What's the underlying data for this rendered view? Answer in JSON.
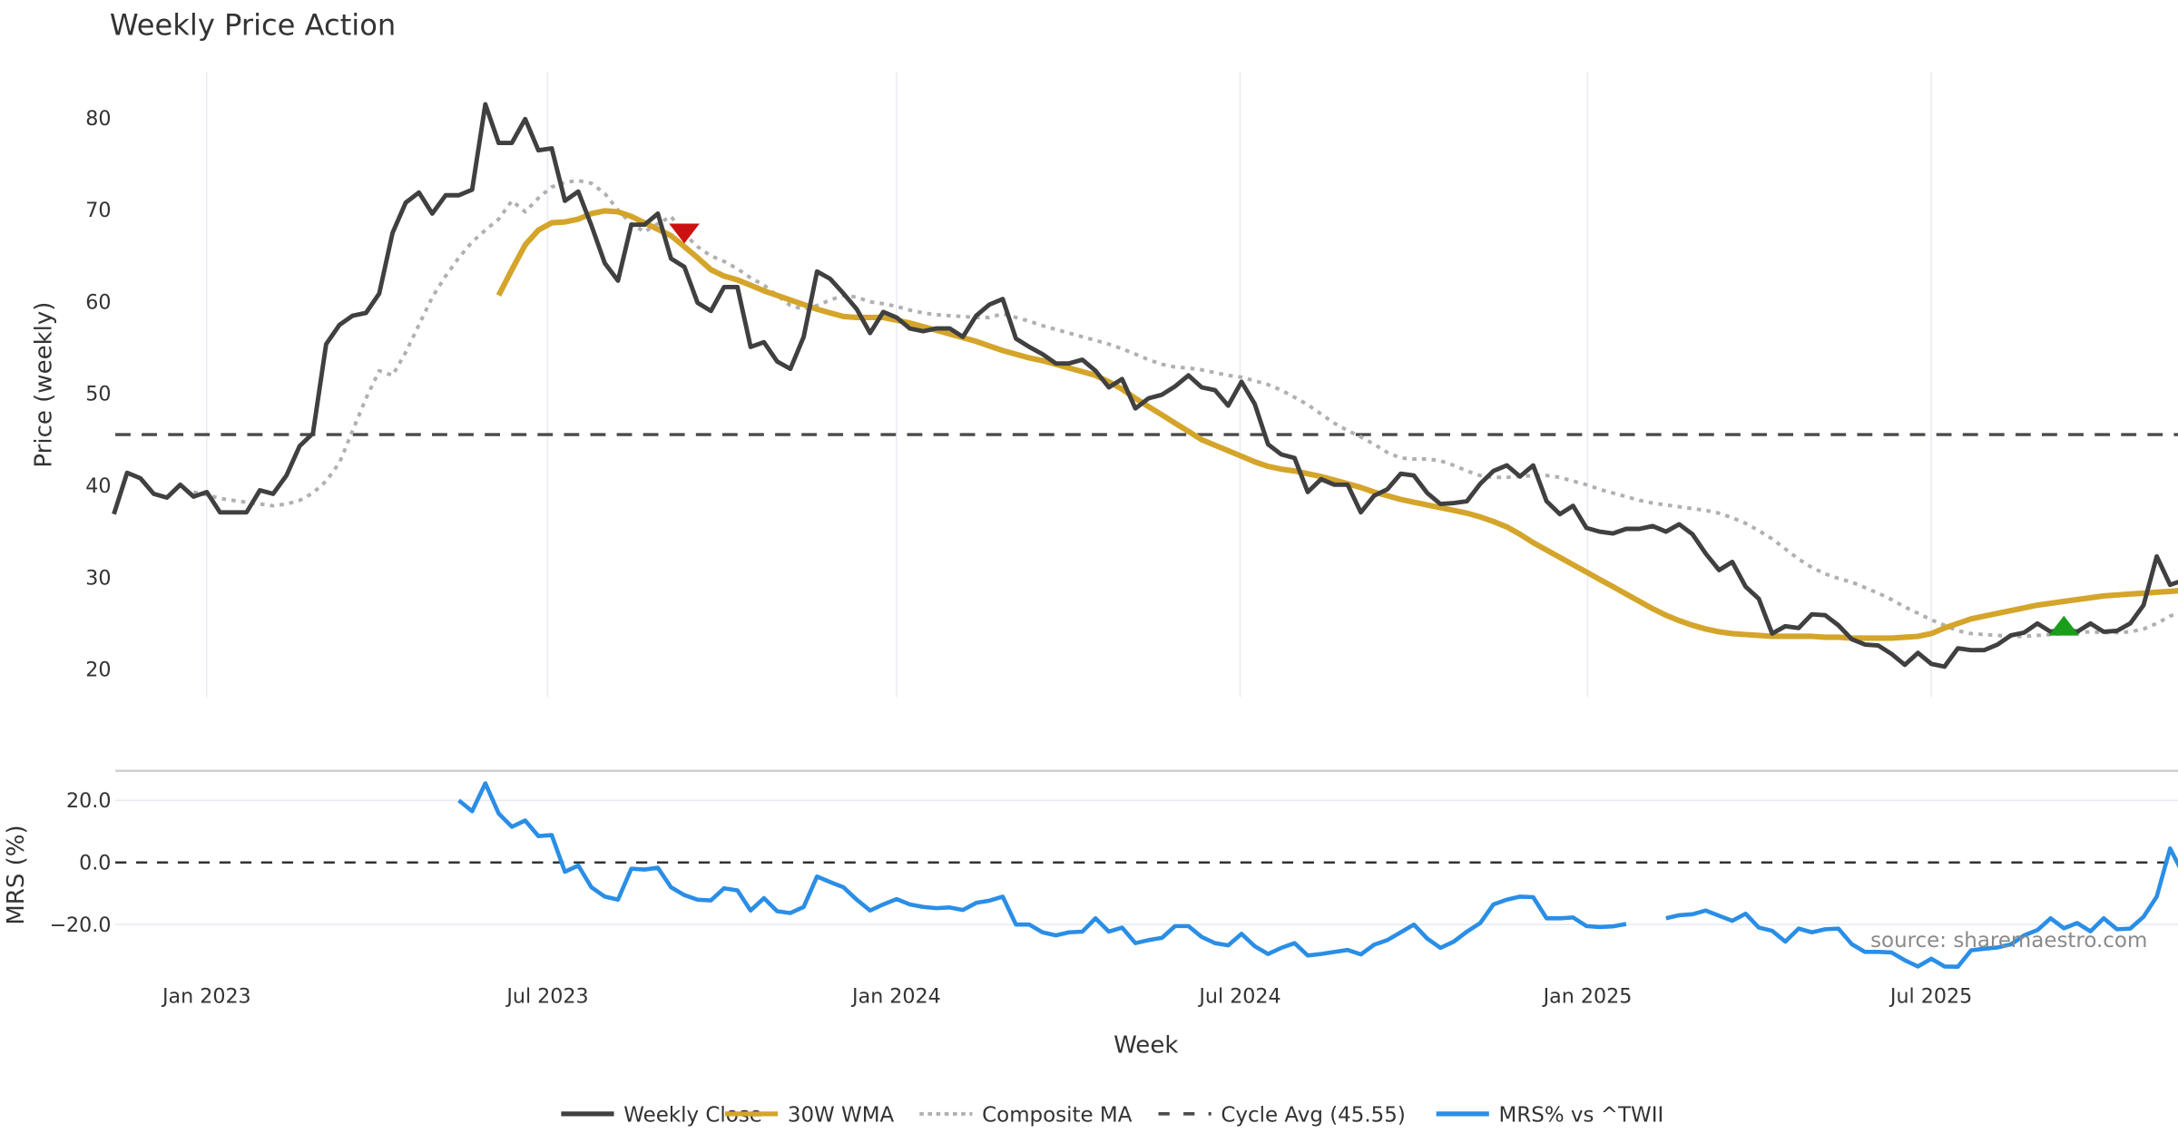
{
  "chart_data": [
    {
      "type": "line",
      "title": "Weekly Price Action",
      "xlabel": "",
      "ylabel": "Price (weekly)",
      "ylim": [
        17,
        84
      ],
      "yticks": [
        20,
        30,
        40,
        50,
        60,
        70,
        80
      ],
      "x_start_week": "2022-11-14",
      "x_ticks": [
        {
          "label": "Jan 2023",
          "week": 7
        },
        {
          "label": "Jul 2023",
          "week": 32.7
        },
        {
          "label": "Jan 2024",
          "week": 59
        },
        {
          "label": "Jul 2024",
          "week": 84.9
        },
        {
          "label": "Jan 2025",
          "week": 111.1
        },
        {
          "label": "Jul 2025",
          "week": 137
        }
      ],
      "grid": "vertical",
      "series": [
        {
          "name": "Weekly Close",
          "color": "#404040",
          "style": "solid",
          "start_week": 0,
          "values": [
            36.9,
            41.4,
            40.8,
            39.1,
            38.7,
            40.1,
            38.8,
            39.3,
            37.1,
            37.1,
            37.1,
            39.5,
            39.1,
            41.1,
            44.3,
            45.7,
            55.4,
            57.5,
            58.5,
            58.8,
            60.9,
            67.5,
            70.8,
            71.9,
            69.6,
            71.6,
            71.6,
            72.2,
            81.5,
            77.3,
            77.3,
            79.9,
            76.5,
            76.7,
            71.0,
            72.0,
            68.3,
            64.2,
            62.3,
            68.4,
            68.4,
            69.6,
            64.7,
            63.8,
            59.9,
            59.0,
            61.6,
            61.6,
            55.1,
            55.6,
            53.5,
            52.7,
            56.2,
            63.3,
            62.5,
            60.9,
            59.2,
            56.6,
            58.9,
            58.3,
            57.1,
            56.8,
            57.1,
            57.1,
            56.2,
            58.5,
            59.7,
            60.3,
            56.0,
            55.1,
            54.3,
            53.3,
            53.3,
            53.7,
            52.5,
            50.7,
            51.6,
            48.4,
            49.5,
            49.9,
            50.8,
            52.0,
            50.7,
            50.4,
            48.7,
            51.3,
            48.9,
            44.5,
            43.4,
            43.0,
            39.3,
            40.7,
            40.1,
            40.1,
            37.1,
            38.9,
            39.6,
            41.3,
            41.1,
            39.2,
            38.0,
            38.1,
            38.3,
            40.2,
            41.6,
            42.2,
            41.0,
            42.2,
            38.3,
            36.9,
            37.8,
            35.4,
            35.0,
            34.8,
            35.3,
            35.3,
            35.6,
            35.0,
            35.8,
            34.7,
            32.6,
            30.8,
            31.7,
            29.0,
            27.7,
            23.9,
            24.7,
            24.5,
            26.0,
            25.9,
            24.8,
            23.3,
            22.7,
            22.6,
            21.7,
            20.5,
            21.8,
            20.6,
            20.3,
            22.3,
            22.1,
            22.1,
            22.7,
            23.7,
            24.0,
            25.0,
            24.1,
            24.4,
            24.1,
            25.0,
            24.1,
            24.2,
            25.0,
            27.0,
            32.3,
            29.2,
            29.7
          ]
        },
        {
          "name": "30W WMA",
          "color": "#d4a52a",
          "style": "solid",
          "start_week": 29,
          "values": [
            60.7,
            63.5,
            66.2,
            67.8,
            68.6,
            68.7,
            69.0,
            69.6,
            69.9,
            69.8,
            69.3,
            68.6,
            67.9,
            67.2,
            66.0,
            64.8,
            63.5,
            62.8,
            62.4,
            61.8,
            61.2,
            60.7,
            60.2,
            59.7,
            59.2,
            58.8,
            58.4,
            58.3,
            58.3,
            58.3,
            58.0,
            57.7,
            57.3,
            56.9,
            56.5,
            56.1,
            55.7,
            55.2,
            54.7,
            54.3,
            53.9,
            53.6,
            53.2,
            52.8,
            52.4,
            52.0,
            51.3,
            50.5,
            49.5,
            48.6,
            47.7,
            46.8,
            45.9,
            45.0,
            44.4,
            43.8,
            43.2,
            42.6,
            42.1,
            41.8,
            41.6,
            41.3,
            41.0,
            40.6,
            40.2,
            39.8,
            39.3,
            38.9,
            38.5,
            38.2,
            37.9,
            37.6,
            37.3,
            37.0,
            36.6,
            36.1,
            35.5,
            34.7,
            33.8,
            33.0,
            32.2,
            31.4,
            30.6,
            29.8,
            29.0,
            28.2,
            27.4,
            26.6,
            25.9,
            25.3,
            24.8,
            24.4,
            24.1,
            23.9,
            23.8,
            23.7,
            23.6,
            23.6,
            23.6,
            23.6,
            23.5,
            23.5,
            23.4,
            23.4,
            23.4,
            23.4,
            23.5,
            23.6,
            23.9,
            24.5,
            25.0,
            25.5,
            25.8,
            26.1,
            26.4,
            26.7,
            27.0,
            27.2,
            27.4,
            27.6,
            27.8,
            28.0,
            28.1,
            28.2,
            28.3,
            28.4,
            28.5,
            28.6
          ]
        },
        {
          "name": "Composite MA",
          "color": "#b0b0b0",
          "style": "dotted",
          "start_week": 6,
          "values": [
            39.3,
            39.0,
            38.6,
            38.4,
            38.2,
            38.0,
            37.8,
            38.0,
            38.4,
            39.2,
            40.5,
            42.5,
            46.0,
            49.5,
            52.5,
            52.0,
            54.5,
            57.5,
            60.5,
            62.8,
            64.8,
            66.5,
            67.8,
            69.0,
            71.0,
            69.8,
            71.3,
            72.5,
            73.0,
            73.2,
            72.9,
            71.8,
            70.0,
            68.5,
            67.6,
            68.5,
            69.3,
            67.4,
            66.0,
            65.0,
            64.4,
            63.6,
            62.6,
            61.8,
            60.7,
            59.6,
            59.2,
            59.6,
            60.2,
            60.7,
            60.5,
            60.0,
            59.8,
            59.5,
            59.1,
            58.8,
            58.6,
            58.5,
            58.4,
            58.3,
            58.3,
            58.7,
            58.3,
            57.9,
            57.4,
            57.0,
            56.6,
            56.2,
            55.8,
            55.4,
            54.9,
            54.3,
            53.7,
            53.2,
            52.9,
            52.8,
            52.6,
            52.3,
            52.0,
            51.8,
            51.4,
            51.0,
            50.4,
            49.6,
            48.8,
            47.8,
            46.8,
            46.0,
            45.3,
            44.5,
            43.6,
            43.0,
            42.9,
            42.9,
            42.7,
            42.2,
            41.6,
            41.1,
            40.9,
            40.9,
            41.0,
            41.1,
            41.1,
            40.9,
            40.5,
            40.1,
            39.6,
            39.2,
            38.8,
            38.4,
            38.1,
            37.9,
            37.7,
            37.5,
            37.3,
            37.0,
            36.5,
            35.9,
            35.1,
            34.2,
            33.1,
            32.0,
            31.1,
            30.4,
            29.9,
            29.5,
            28.9,
            28.3,
            27.6,
            26.8,
            26.1,
            25.4,
            24.8,
            24.2,
            23.9,
            23.8,
            23.7,
            23.6,
            23.6,
            23.7,
            23.8,
            23.9,
            24.0,
            24.1,
            24.0,
            24.0,
            24.1,
            24.4,
            25.0,
            25.8,
            26.3,
            26.7
          ]
        },
        {
          "name": "Cycle Avg (45.55)",
          "color": "#4a4a4a",
          "style": "dashed",
          "constant": 45.55
        }
      ],
      "annotations": [
        {
          "type": "sell-signal",
          "shape": "triangle-down",
          "color": "#cc1111",
          "week": 43,
          "value": 67.6
        },
        {
          "type": "buy-signal",
          "shape": "triangle-up",
          "color": "#1a9e1a",
          "week": 147,
          "value": 24.6
        }
      ]
    },
    {
      "type": "line",
      "title": "",
      "xlabel": "Week",
      "ylabel": "MRS (%)",
      "ylim": [
        -32,
        30
      ],
      "yticks": [
        20.0,
        0.0,
        -20.0
      ],
      "ytick_labels": [
        "20.0",
        "0.0",
        "−20.0"
      ],
      "zero_line": "dashed",
      "series": [
        {
          "name": "MRS% vs ^TWII",
          "color": "#2a8ee6",
          "style": "solid",
          "start_week": 26,
          "values": [
            20.0,
            16.5,
            25.5,
            15.8,
            11.5,
            13.5,
            8.5,
            8.8,
            -3.0,
            -1.0,
            -8.0,
            -11.0,
            -12.0,
            -2.0,
            -2.3,
            -1.7,
            -8.0,
            -10.5,
            -12.0,
            -12.2,
            -8.3,
            -9.0,
            -15.5,
            -11.5,
            -15.7,
            -16.3,
            -14.3,
            -4.5,
            -6.3,
            -8.0,
            -12.0,
            -15.5,
            -13.5,
            -11.8,
            -13.5,
            -14.3,
            -14.7,
            -14.5,
            -15.3,
            -13.0,
            -12.3,
            -11.0,
            -20.0,
            -20.0,
            -22.5,
            -23.5,
            -22.5,
            -22.3,
            -18.0,
            -22.3,
            -21.0,
            -26.0,
            -25.0,
            -24.3,
            -20.5,
            -20.5,
            -24.0,
            -26.0,
            -26.7,
            -23.0,
            -27.0,
            -29.5,
            -27.5,
            -26.0,
            -30.0,
            -29.5,
            -28.8,
            -28.2,
            -29.6,
            -26.5,
            -25.0,
            -22.5,
            -20.0,
            -24.5,
            -27.5,
            -25.5,
            -22.3,
            -19.5,
            -13.5,
            -12.0,
            -11.0,
            -11.2,
            -18.0,
            -18.0,
            -17.7,
            -20.5,
            -20.8,
            -20.6,
            -19.8,
            null,
            null,
            -18.0,
            -17.0,
            -16.7,
            -15.5,
            -17.2,
            -18.8,
            -16.5,
            -21.0,
            -22.0,
            -25.5,
            -21.3,
            -22.5,
            -21.5,
            -21.3,
            -26.3,
            -28.8,
            -28.8,
            -29.0,
            -31.5,
            -33.5,
            -31.0,
            -33.5,
            -33.6,
            -28.3,
            -27.8,
            -27.4,
            -26.4,
            -23.5,
            -21.8,
            -18.0,
            -21.2,
            -19.5,
            -22.2,
            -18.0,
            -21.5,
            -21.3,
            -17.5,
            -11.0,
            4.5,
            -3.8,
            -0.5
          ]
        }
      ],
      "source_text": "source: sharemaestro.com"
    }
  ],
  "legend": {
    "placement": "bottom-center",
    "items": [
      {
        "label": "Weekly Close",
        "color": "#404040",
        "style": "solid"
      },
      {
        "label": "30W WMA",
        "color": "#d4a52a",
        "style": "solid"
      },
      {
        "label": "Composite MA",
        "color": "#b0b0b0",
        "style": "dotted"
      },
      {
        "label": "Cycle Avg (45.55)",
        "color": "#4a4a4a",
        "style": "dashed"
      },
      {
        "label": "MRS% vs ^TWII",
        "color": "#2a8ee6",
        "style": "solid"
      }
    ]
  }
}
